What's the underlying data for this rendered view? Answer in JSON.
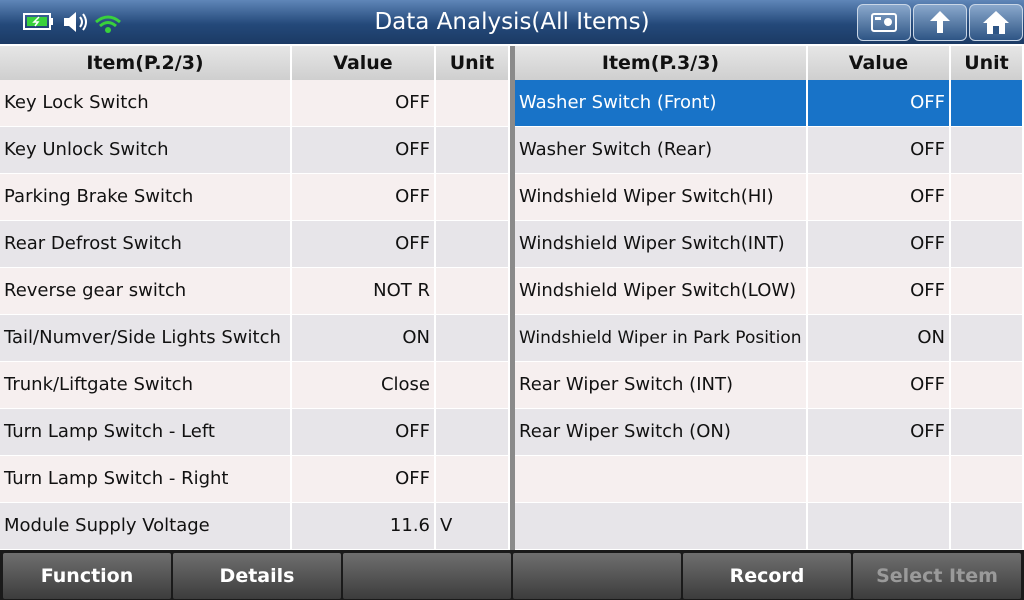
{
  "header": {
    "title": "Data Analysis(All Items)"
  },
  "left_table": {
    "columns": [
      "Item(P.2/3)",
      "Value",
      "Unit"
    ],
    "rows": [
      {
        "item": "Key Lock Switch",
        "value": "OFF"
      },
      {
        "item": "Key Unlock Switch",
        "value": "OFF"
      },
      {
        "item": "Parking Brake Switch",
        "value": "OFF"
      },
      {
        "item": "Rear Defrost Switch",
        "value": "OFF"
      },
      {
        "item": "Reverse gear switch",
        "value": "NOT R"
      },
      {
        "item": "Tail/Numver/Side Lights Switch",
        "value": "ON"
      },
      {
        "item": "Trunk/Liftgate Switch",
        "value": "Close"
      },
      {
        "item": "Turn Lamp Switch - Left",
        "value": "OFF"
      },
      {
        "item": "Turn Lamp Switch - Right",
        "value": "OFF"
      },
      {
        "item": "Module Supply Voltage",
        "value": "11.6",
        "unit": "V"
      }
    ]
  },
  "right_table": {
    "columns": [
      "Item(P.3/3)",
      "Value",
      "Unit"
    ],
    "rows": [
      {
        "item": "Washer Switch (Front)",
        "value": "OFF"
      },
      {
        "item": "Washer Switch (Rear)",
        "value": "OFF"
      },
      {
        "item": "Windshield Wiper Switch(HI)",
        "value": "OFF"
      },
      {
        "item": "Windshield Wiper Switch(INT)",
        "value": "OFF"
      },
      {
        "item": "Windshield Wiper Switch(LOW)",
        "value": "OFF"
      },
      {
        "item": "Windshield Wiper in Park Position",
        "value": "ON"
      },
      {
        "item": "Rear Wiper Switch (INT)",
        "value": "OFF"
      },
      {
        "item": "Rear Wiper Switch (ON)",
        "value": "OFF"
      }
    ]
  },
  "footer": {
    "buttons": [
      "Function",
      "Details",
      "Record",
      "Select Item"
    ]
  }
}
